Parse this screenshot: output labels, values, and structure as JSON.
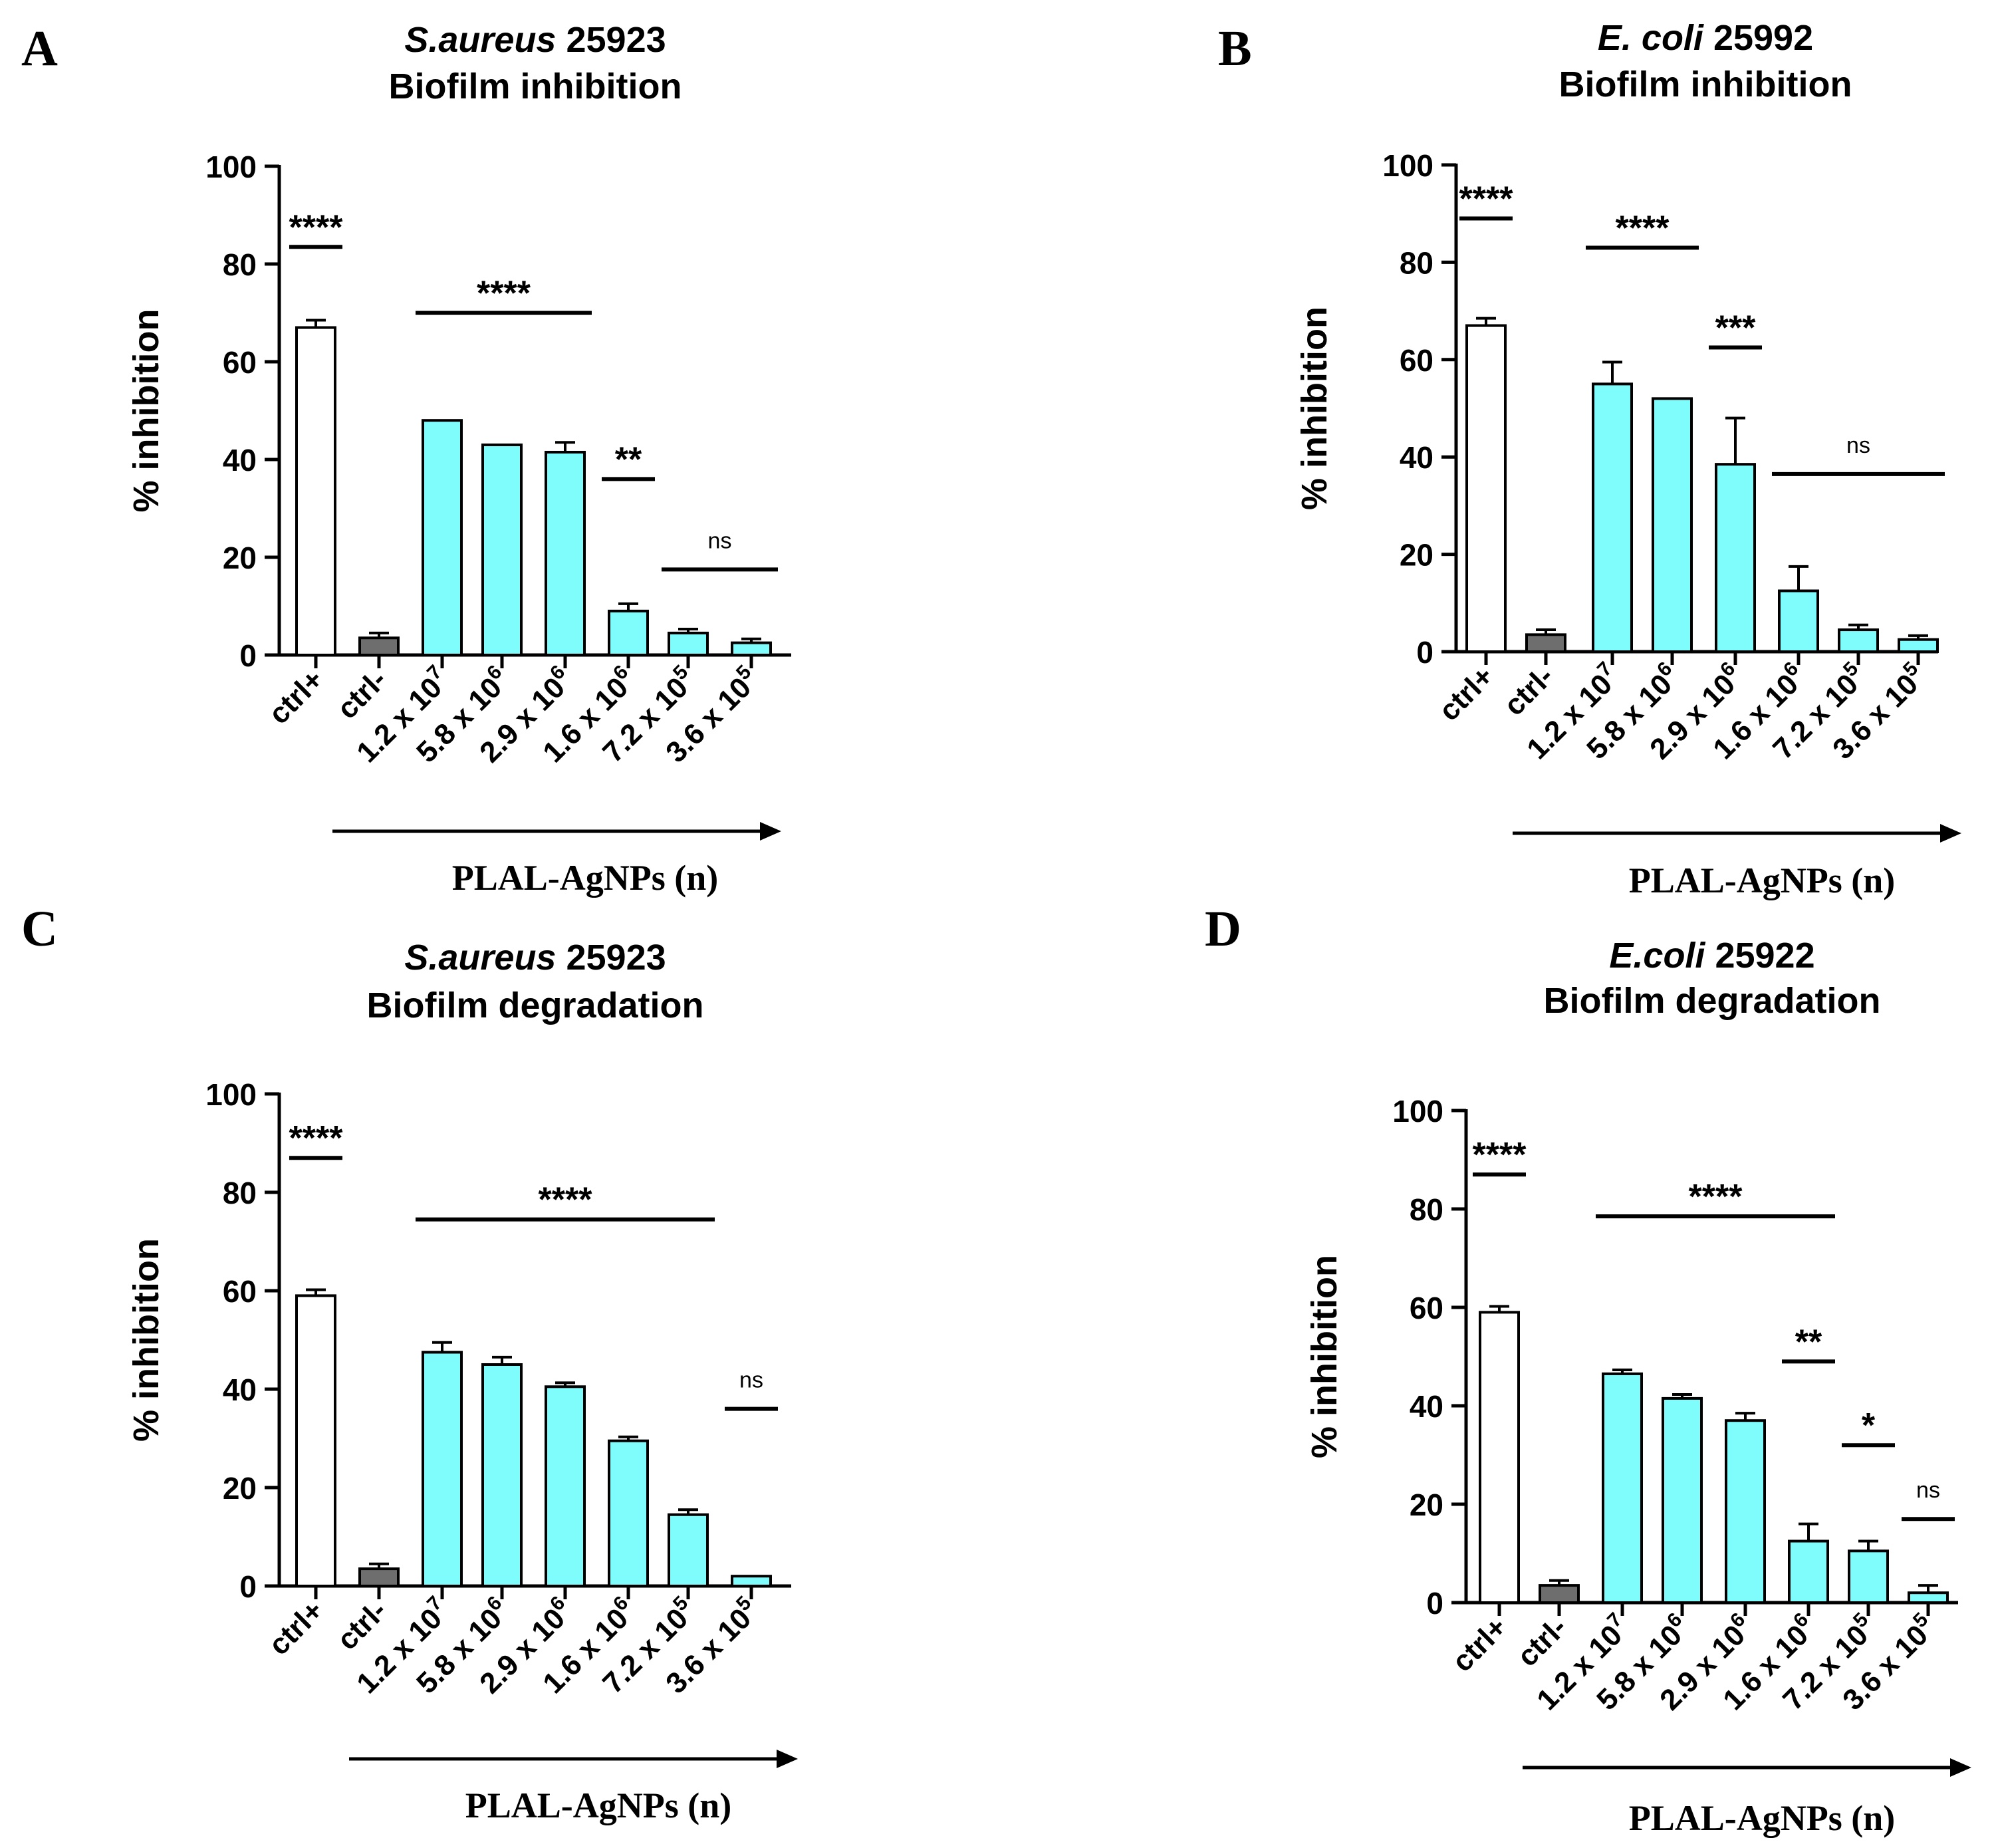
{
  "chart_data": [
    {
      "type": "bar",
      "panel_label": "A",
      "title_italic": "S.aureus",
      "title_rest": " 25923",
      "subtitle": "Biofilm inhibition",
      "ylabel": "% inhibition",
      "xlabel": "PLAL-AgNPs (n)",
      "ylim": [
        0,
        100
      ],
      "yticks": [
        "0",
        "20",
        "40",
        "60",
        "80",
        "100"
      ],
      "categories": [
        {
          "base": "ctrl+",
          "exp": ""
        },
        {
          "base": "ctrl-",
          "exp": ""
        },
        {
          "base": "1.2 x 10",
          "exp": "7"
        },
        {
          "base": "5.8 x 10",
          "exp": "6"
        },
        {
          "base": "2.9 x 10",
          "exp": "6"
        },
        {
          "base": "1.6 x 10",
          "exp": "6"
        },
        {
          "base": "7.2 x 10",
          "exp": "5"
        },
        {
          "base": "3.6 x 10",
          "exp": "5"
        }
      ],
      "values": [
        67,
        3.5,
        48,
        43,
        41.5,
        9,
        4.5,
        2.5
      ],
      "errors": [
        1.5,
        1,
        0,
        0,
        2,
        1.5,
        0.8,
        0.8
      ],
      "bar_colors": [
        "#ffffff",
        "#6e6e6e",
        "#7ffcfc",
        "#7ffcfc",
        "#7ffcfc",
        "#7ffcfc",
        "#7ffcfc",
        "#7ffcfc"
      ],
      "significance": [
        {
          "text": "****",
          "from": 0,
          "to": 0,
          "y": 83.5
        },
        {
          "text": "****",
          "from": 2,
          "to": 4,
          "y": 70
        },
        {
          "text": "**",
          "from": 5,
          "to": 5,
          "y": 36
        },
        {
          "text": "ns",
          "from": 6,
          "to": 7,
          "y": 17.5
        }
      ]
    },
    {
      "type": "bar",
      "panel_label": "B",
      "title_italic": "E. coli",
      "title_rest": " 25992",
      "subtitle": "Biofilm inhibition",
      "ylabel": "% inhibition",
      "xlabel": "PLAL-AgNPs (n)",
      "ylim": [
        0,
        100
      ],
      "yticks": [
        "0",
        "20",
        "40",
        "60",
        "80",
        "100"
      ],
      "categories": [
        {
          "base": "ctrl+",
          "exp": ""
        },
        {
          "base": "ctrl-",
          "exp": ""
        },
        {
          "base": "1.2 x 10",
          "exp": "7"
        },
        {
          "base": "5.8 x 10",
          "exp": "6"
        },
        {
          "base": "2.9 x 10",
          "exp": "6"
        },
        {
          "base": "1.6 x 10",
          "exp": "6"
        },
        {
          "base": "7.2 x 10",
          "exp": "5"
        },
        {
          "base": "3.6 x 10",
          "exp": "5"
        }
      ],
      "values": [
        67,
        3.5,
        55,
        52,
        38.5,
        12.5,
        4.5,
        2.5
      ],
      "errors": [
        1.5,
        1,
        4.5,
        0,
        9.5,
        5,
        1,
        0.8
      ],
      "bar_colors": [
        "#ffffff",
        "#6e6e6e",
        "#7ffcfc",
        "#7ffcfc",
        "#7ffcfc",
        "#7ffcfc",
        "#7ffcfc",
        "#7ffcfc"
      ],
      "significance": [
        {
          "text": "****",
          "from": 0,
          "to": 0,
          "y": 89
        },
        {
          "text": "****",
          "from": 2,
          "to": 3,
          "y": 83
        },
        {
          "text": "***",
          "from": 4,
          "to": 4,
          "y": 62.5
        },
        {
          "text": "ns",
          "from": 5,
          "to": 7,
          "y": 36.5
        }
      ]
    },
    {
      "type": "bar",
      "panel_label": "C",
      "title_italic": "S.aureus",
      "title_rest": " 25923",
      "subtitle": "Biofilm degradation",
      "ylabel": "% inhibition",
      "xlabel": "PLAL-AgNPs (n)",
      "ylim": [
        0,
        100
      ],
      "yticks": [
        "0",
        "20",
        "40",
        "60",
        "80",
        "100"
      ],
      "categories": [
        {
          "base": "ctrl+",
          "exp": ""
        },
        {
          "base": "ctrl-",
          "exp": ""
        },
        {
          "base": "1.2 x 10",
          "exp": "7"
        },
        {
          "base": "5.8 x 10",
          "exp": "6"
        },
        {
          "base": "2.9 x 10",
          "exp": "6"
        },
        {
          "base": "1.6 x 10",
          "exp": "6"
        },
        {
          "base": "7.2 x 10",
          "exp": "5"
        },
        {
          "base": "3.6 x 10",
          "exp": "5"
        }
      ],
      "values": [
        59,
        3.5,
        47.5,
        45,
        40.5,
        29.5,
        14.5,
        2
      ],
      "errors": [
        1.2,
        1,
        2,
        1.5,
        0.8,
        0.8,
        1,
        0
      ],
      "bar_colors": [
        "#ffffff",
        "#6e6e6e",
        "#7ffcfc",
        "#7ffcfc",
        "#7ffcfc",
        "#7ffcfc",
        "#7ffcfc",
        "#7ffcfc"
      ],
      "significance": [
        {
          "text": "****",
          "from": 0,
          "to": 0,
          "y": 87
        },
        {
          "text": "****",
          "from": 2,
          "to": 6,
          "y": 74.5
        },
        {
          "text": "ns",
          "from": 7,
          "to": 7,
          "y": 36
        }
      ]
    },
    {
      "type": "bar",
      "panel_label": "D",
      "title_italic": "E.coli",
      "title_rest": " 25922",
      "subtitle": "Biofilm degradation",
      "ylabel": "% inhibition",
      "xlabel": "PLAL-AgNPs (n)",
      "ylim": [
        0,
        100
      ],
      "yticks": [
        "0",
        "20",
        "40",
        "60",
        "80",
        "100"
      ],
      "categories": [
        {
          "base": "ctrl+",
          "exp": ""
        },
        {
          "base": "ctrl-",
          "exp": ""
        },
        {
          "base": "1.2 x 10",
          "exp": "7"
        },
        {
          "base": "5.8 x 10",
          "exp": "6"
        },
        {
          "base": "2.9 x 10",
          "exp": "6"
        },
        {
          "base": "1.6 x 10",
          "exp": "6"
        },
        {
          "base": "7.2 x 10",
          "exp": "5"
        },
        {
          "base": "3.6 x 10",
          "exp": "5"
        }
      ],
      "values": [
        59,
        3.5,
        46.5,
        41.5,
        37,
        12.5,
        10.5,
        2
      ],
      "errors": [
        1.2,
        1,
        0.8,
        0.8,
        1.5,
        3.5,
        2,
        1.5
      ],
      "bar_colors": [
        "#ffffff",
        "#6e6e6e",
        "#7ffcfc",
        "#7ffcfc",
        "#7ffcfc",
        "#7ffcfc",
        "#7ffcfc",
        "#7ffcfc"
      ],
      "significance": [
        {
          "text": "****",
          "from": 0,
          "to": 0,
          "y": 87
        },
        {
          "text": "****",
          "from": 2,
          "to": 5,
          "y": 78.5
        },
        {
          "text": "**",
          "from": 5,
          "to": 5,
          "y": 49
        },
        {
          "text": "*",
          "from": 6,
          "to": 6,
          "y": 32
        },
        {
          "text": "ns",
          "from": 7,
          "to": 7,
          "y": 17
        }
      ]
    }
  ]
}
